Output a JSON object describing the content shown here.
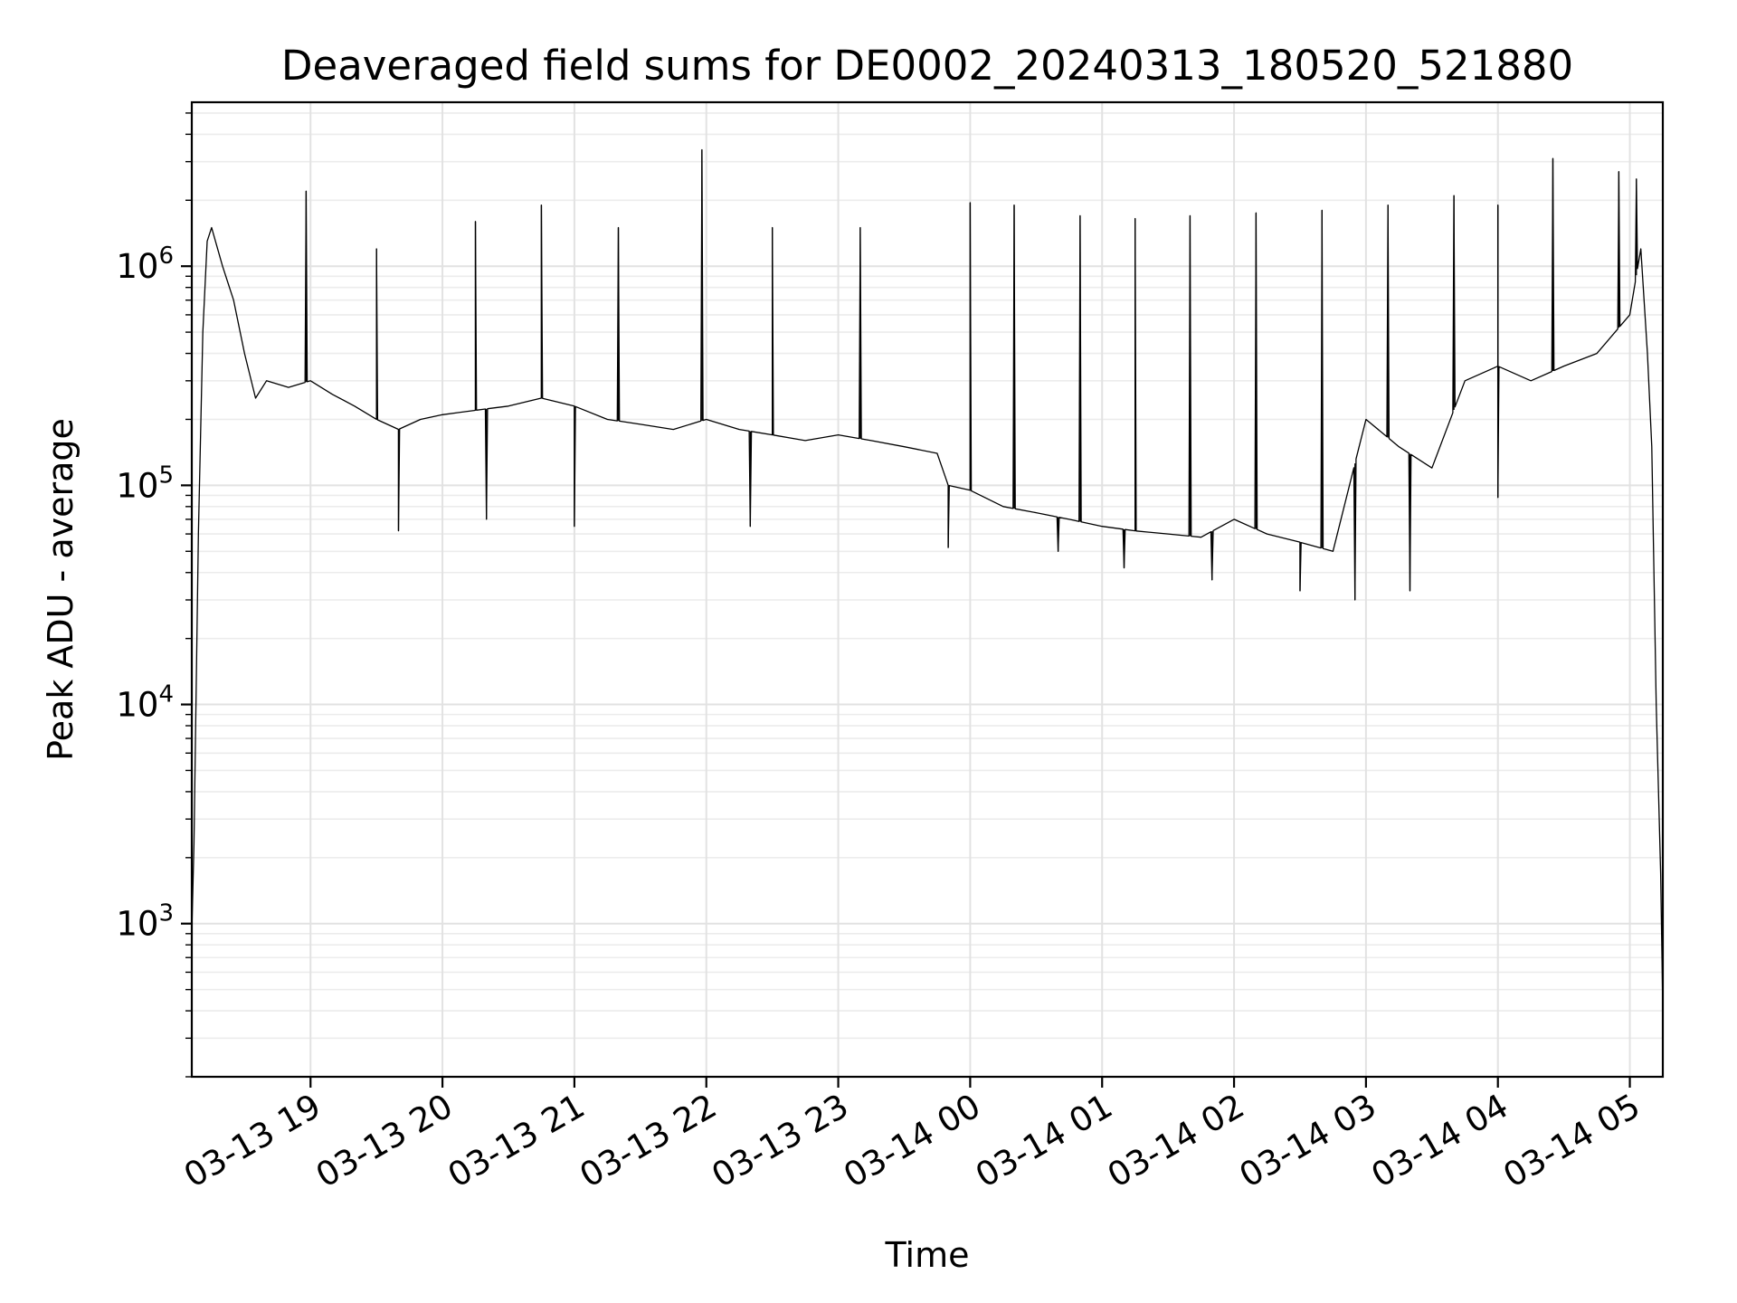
{
  "chart_data": {
    "type": "line",
    "title": "Deaveraged field sums for DE0002_20240313_180520_521880",
    "xlabel": "Time",
    "ylabel": "Peak ADU - average",
    "yscale": "log",
    "grid": true,
    "xlim": [
      "2024-03-13 18:06",
      "2024-03-14 05:15"
    ],
    "ylim": [
      200,
      5600000
    ],
    "x_ticks": [
      {
        "value": "2024-03-13 19:00",
        "label": "03-13 19"
      },
      {
        "value": "2024-03-13 20:00",
        "label": "03-13 20"
      },
      {
        "value": "2024-03-13 21:00",
        "label": "03-13 21"
      },
      {
        "value": "2024-03-13 22:00",
        "label": "03-13 22"
      },
      {
        "value": "2024-03-13 23:00",
        "label": "03-13 23"
      },
      {
        "value": "2024-03-14 00:00",
        "label": "03-14 00"
      },
      {
        "value": "2024-03-14 01:00",
        "label": "03-14 01"
      },
      {
        "value": "2024-03-14 02:00",
        "label": "03-14 02"
      },
      {
        "value": "2024-03-14 03:00",
        "label": "03-14 03"
      },
      {
        "value": "2024-03-14 04:00",
        "label": "03-14 04"
      },
      {
        "value": "2024-03-14 05:00",
        "label": "03-14 05"
      }
    ],
    "y_ticks": [
      {
        "value": 1000,
        "base": "10",
        "exp": "3"
      },
      {
        "value": 10000,
        "base": "10",
        "exp": "4"
      },
      {
        "value": 100000,
        "base": "10",
        "exp": "5"
      },
      {
        "value": 1000000,
        "base": "10",
        "exp": "6"
      }
    ],
    "series": [
      {
        "color": "#000000",
        "points": [
          [
            "2024-03-13 18:06",
            900
          ],
          [
            "2024-03-13 18:07",
            2300
          ],
          [
            "2024-03-13 18:09",
            60000
          ],
          [
            "2024-03-13 18:11",
            500000
          ],
          [
            "2024-03-13 18:13",
            1300000
          ],
          [
            "2024-03-13 18:15",
            1500000
          ],
          [
            "2024-03-13 18:20",
            1000000
          ],
          [
            "2024-03-13 18:25",
            700000
          ],
          [
            "2024-03-13 18:30",
            400000
          ],
          [
            "2024-03-13 18:35",
            250000
          ],
          [
            "2024-03-13 18:40",
            300000
          ],
          [
            "2024-03-13 18:50",
            280000
          ],
          [
            "2024-03-13 19:00",
            300000
          ],
          [
            "2024-03-13 19:10",
            260000
          ],
          [
            "2024-03-13 19:20",
            230000
          ],
          [
            "2024-03-13 19:30",
            200000
          ],
          [
            "2024-03-13 19:40",
            180000
          ],
          [
            "2024-03-13 19:50",
            200000
          ],
          [
            "2024-03-13 20:00",
            210000
          ],
          [
            "2024-03-13 20:15",
            220000
          ],
          [
            "2024-03-13 20:30",
            230000
          ],
          [
            "2024-03-13 20:45",
            250000
          ],
          [
            "2024-03-13 21:00",
            230000
          ],
          [
            "2024-03-13 21:15",
            200000
          ],
          [
            "2024-03-13 21:30",
            190000
          ],
          [
            "2024-03-13 21:45",
            180000
          ],
          [
            "2024-03-13 22:00",
            200000
          ],
          [
            "2024-03-13 22:15",
            180000
          ],
          [
            "2024-03-13 22:30",
            170000
          ],
          [
            "2024-03-13 22:45",
            160000
          ],
          [
            "2024-03-13 23:00",
            170000
          ],
          [
            "2024-03-13 23:15",
            160000
          ],
          [
            "2024-03-13 23:30",
            150000
          ],
          [
            "2024-03-13 23:45",
            140000
          ],
          [
            "2024-03-13 23:50",
            100000
          ],
          [
            "2024-03-14 00:00",
            95000
          ],
          [
            "2024-03-14 00:15",
            80000
          ],
          [
            "2024-03-14 00:30",
            75000
          ],
          [
            "2024-03-14 00:45",
            70000
          ],
          [
            "2024-03-14 01:00",
            65000
          ],
          [
            "2024-03-14 01:15",
            62000
          ],
          [
            "2024-03-14 01:30",
            60000
          ],
          [
            "2024-03-14 01:45",
            58000
          ],
          [
            "2024-03-14 02:00",
            70000
          ],
          [
            "2024-03-14 02:15",
            60000
          ],
          [
            "2024-03-14 02:30",
            55000
          ],
          [
            "2024-03-14 02:45",
            50000
          ],
          [
            "2024-03-14 03:00",
            200000
          ],
          [
            "2024-03-14 03:15",
            150000
          ],
          [
            "2024-03-14 03:30",
            120000
          ],
          [
            "2024-03-14 03:45",
            300000
          ],
          [
            "2024-03-14 04:00",
            350000
          ],
          [
            "2024-03-14 04:15",
            300000
          ],
          [
            "2024-03-14 04:30",
            350000
          ],
          [
            "2024-03-14 04:45",
            400000
          ],
          [
            "2024-03-14 05:00",
            600000
          ],
          [
            "2024-03-14 05:05",
            1200000
          ],
          [
            "2024-03-14 05:08",
            400000
          ],
          [
            "2024-03-14 05:10",
            150000
          ],
          [
            "2024-03-14 05:12",
            10000
          ],
          [
            "2024-03-14 05:14",
            1700
          ],
          [
            "2024-03-14 05:15",
            400
          ]
        ]
      }
    ],
    "peaks": [
      [
        "2024-03-13 18:58",
        2200000
      ],
      [
        "2024-03-13 19:30",
        1200000
      ],
      [
        "2024-03-13 20:15",
        1600000
      ],
      [
        "2024-03-13 20:45",
        1900000
      ],
      [
        "2024-03-13 21:20",
        1500000
      ],
      [
        "2024-03-13 21:58",
        3400000
      ],
      [
        "2024-03-13 22:30",
        1500000
      ],
      [
        "2024-03-13 23:10",
        1500000
      ],
      [
        "2024-03-14 00:00",
        1950000
      ],
      [
        "2024-03-14 00:20",
        1900000
      ],
      [
        "2024-03-14 00:50",
        1700000
      ],
      [
        "2024-03-14 01:15",
        1650000
      ],
      [
        "2024-03-14 01:40",
        1700000
      ],
      [
        "2024-03-14 02:10",
        1750000
      ],
      [
        "2024-03-14 02:40",
        1800000
      ],
      [
        "2024-03-14 03:10",
        1900000
      ],
      [
        "2024-03-14 03:40",
        2100000
      ],
      [
        "2024-03-14 04:00",
        1900000
      ],
      [
        "2024-03-14 04:25",
        3100000
      ],
      [
        "2024-03-14 04:55",
        2700000
      ],
      [
        "2024-03-14 05:03",
        2500000
      ]
    ],
    "troughs": [
      [
        "2024-03-13 19:40",
        62000
      ],
      [
        "2024-03-13 20:20",
        70000
      ],
      [
        "2024-03-13 21:00",
        65000
      ],
      [
        "2024-03-13 22:20",
        65000
      ],
      [
        "2024-03-13 23:50",
        52000
      ],
      [
        "2024-03-14 00:40",
        50000
      ],
      [
        "2024-03-14 01:10",
        42000
      ],
      [
        "2024-03-14 01:50",
        37000
      ],
      [
        "2024-03-14 02:30",
        33000
      ],
      [
        "2024-03-14 02:55",
        30000
      ],
      [
        "2024-03-14 03:20",
        33000
      ],
      [
        "2024-03-14 04:00",
        88000
      ]
    ]
  }
}
